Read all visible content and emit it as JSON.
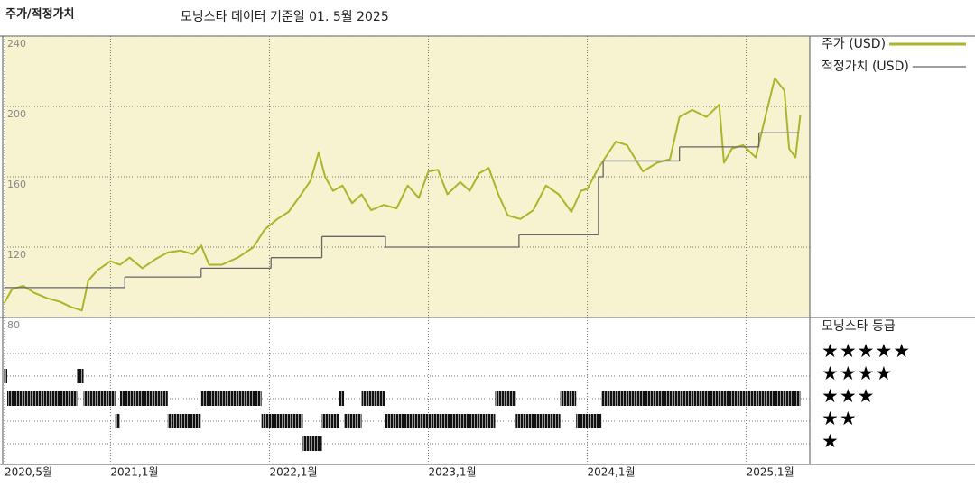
{
  "chart_data": {
    "type": "line",
    "header_label": "주가/적정가치",
    "title": "모닝스타 데이터 기준일 01. 5월 2025",
    "rating_title": "모닝스타 등급",
    "xlim": [
      2020.333,
      2025.4
    ],
    "xticks": [
      {
        "value": 2020.333,
        "label": "2020,5월"
      },
      {
        "value": 2021.0,
        "label": "2021,1월"
      },
      {
        "value": 2022.0,
        "label": "2022,1월"
      },
      {
        "value": 2023.0,
        "label": "2023,1월"
      },
      {
        "value": 2024.0,
        "label": "2024,1월"
      },
      {
        "value": 2025.0,
        "label": "2025,1월"
      }
    ],
    "ylim": [
      80,
      240
    ],
    "yticks": [
      240,
      200,
      160,
      120,
      80
    ],
    "grid": true,
    "background": "#f7f3d1",
    "series": [
      {
        "name": "주가 (USD)",
        "color": "#a9b52a",
        "x": [
          2020.33,
          2020.38,
          2020.45,
          2020.52,
          2020.6,
          2020.68,
          2020.75,
          2020.82,
          2020.86,
          2020.92,
          2021.0,
          2021.06,
          2021.12,
          2021.2,
          2021.28,
          2021.36,
          2021.44,
          2021.52,
          2021.57,
          2021.62,
          2021.7,
          2021.8,
          2021.9,
          2021.97,
          2022.05,
          2022.12,
          2022.2,
          2022.26,
          2022.31,
          2022.35,
          2022.4,
          2022.46,
          2022.52,
          2022.58,
          2022.64,
          2022.72,
          2022.8,
          2022.87,
          2022.94,
          2023.0,
          2023.06,
          2023.12,
          2023.2,
          2023.26,
          2023.32,
          2023.38,
          2023.44,
          2023.5,
          2023.58,
          2023.66,
          2023.74,
          2023.82,
          2023.9,
          2023.96,
          2024.0,
          2024.07,
          2024.18,
          2024.25,
          2024.29,
          2024.35,
          2024.44,
          2024.52,
          2024.58,
          2024.66,
          2024.75,
          2024.83,
          2024.86,
          2024.91,
          2024.98,
          2025.06,
          2025.12,
          2025.18,
          2025.24,
          2025.27,
          2025.31,
          2025.34
        ],
        "values": [
          88,
          96,
          98,
          94,
          91,
          89,
          86,
          84,
          101,
          107,
          112,
          110,
          114,
          108,
          113,
          117,
          118,
          116,
          121,
          110,
          110,
          114,
          120,
          130,
          136,
          140,
          150,
          158,
          174,
          160,
          152,
          155,
          145,
          150,
          141,
          144,
          142,
          155,
          148,
          163,
          164,
          150,
          157,
          152,
          162,
          165,
          150,
          138,
          136,
          141,
          155,
          150,
          140,
          152,
          153,
          165,
          180,
          178,
          172,
          163,
          168,
          170,
          194,
          198,
          194,
          201,
          168,
          176,
          178,
          171,
          194,
          216,
          209,
          176,
          171,
          195
        ]
      },
      {
        "name": "적정가치 (USD)",
        "color": "#666666",
        "step": "after",
        "x": [
          2020.33,
          2021.09,
          2021.57,
          2022.01,
          2022.33,
          2022.73,
          2023.57,
          2024.07,
          2024.1,
          2024.58,
          2025.08,
          2025.33
        ],
        "values": [
          97,
          103,
          108,
          114,
          126,
          120,
          127,
          160,
          169,
          177,
          185,
          185
        ]
      }
    ],
    "rating_rows": [
      {
        "stars": 5,
        "label": "★★★★★"
      },
      {
        "stars": 4,
        "label": "★★★★"
      },
      {
        "stars": 3,
        "label": "★★★"
      },
      {
        "stars": 2,
        "label": "★★"
      },
      {
        "stars": 1,
        "label": "★"
      }
    ],
    "rating_periods": [
      {
        "start": 2020.33,
        "end": 2020.35,
        "stars": 4
      },
      {
        "start": 2020.35,
        "end": 2020.79,
        "stars": 3
      },
      {
        "start": 2020.79,
        "end": 2020.83,
        "stars": 4
      },
      {
        "start": 2020.83,
        "end": 2021.03,
        "stars": 3
      },
      {
        "start": 2021.03,
        "end": 2021.06,
        "stars": 2
      },
      {
        "start": 2021.06,
        "end": 2021.36,
        "stars": 3
      },
      {
        "start": 2021.36,
        "end": 2021.57,
        "stars": 2
      },
      {
        "start": 2021.57,
        "end": 2021.95,
        "stars": 3
      },
      {
        "start": 2021.95,
        "end": 2022.21,
        "stars": 2
      },
      {
        "start": 2022.21,
        "end": 2022.33,
        "stars": 1
      },
      {
        "start": 2022.33,
        "end": 2022.44,
        "stars": 2
      },
      {
        "start": 2022.44,
        "end": 2022.47,
        "stars": 3
      },
      {
        "start": 2022.47,
        "end": 2022.58,
        "stars": 2
      },
      {
        "start": 2022.58,
        "end": 2022.73,
        "stars": 3
      },
      {
        "start": 2022.73,
        "end": 2023.42,
        "stars": 2
      },
      {
        "start": 2023.42,
        "end": 2023.55,
        "stars": 3
      },
      {
        "start": 2023.55,
        "end": 2023.83,
        "stars": 2
      },
      {
        "start": 2023.83,
        "end": 2023.93,
        "stars": 3
      },
      {
        "start": 2023.93,
        "end": 2024.09,
        "stars": 2
      },
      {
        "start": 2024.09,
        "end": 2025.34,
        "stars": 3
      }
    ]
  }
}
